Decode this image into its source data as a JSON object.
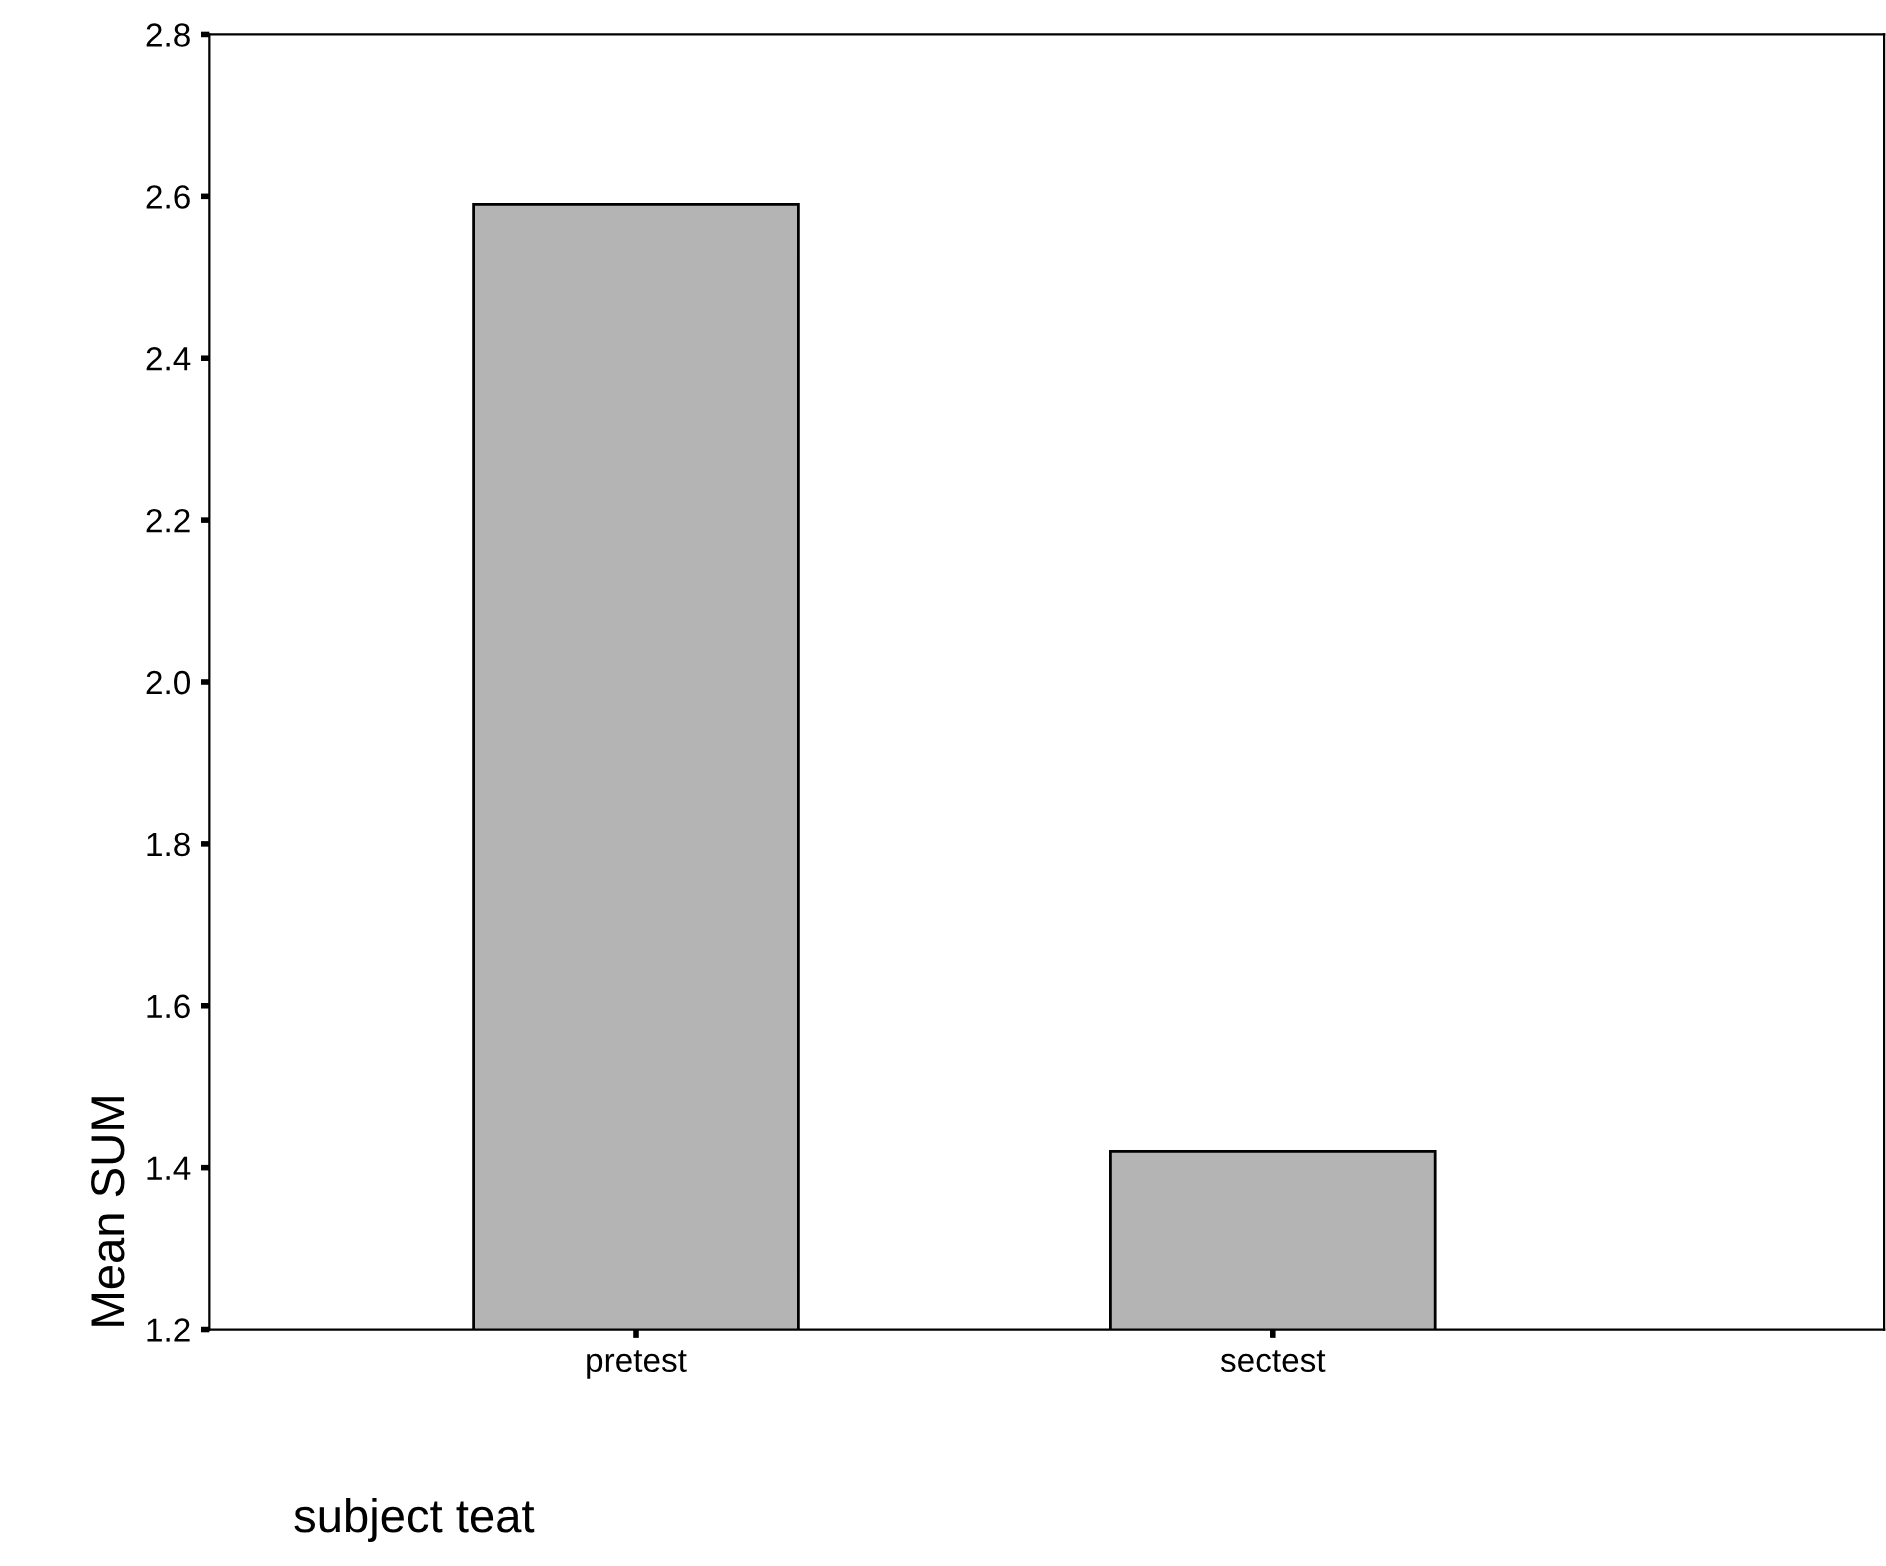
{
  "chart_data": {
    "type": "bar",
    "xlabel": "subject teat",
    "ylabel": "Mean SUM",
    "categories": [
      "pretest",
      "sectest"
    ],
    "values": [
      2.59,
      1.42
    ],
    "color": "#b4b4b4",
    "ylim": [
      1.2,
      2.8
    ],
    "yticks": [
      1.2,
      1.4,
      1.6,
      1.8,
      {
        "value": 2,
        "label": "2.0"
      },
      2.2,
      2.4,
      2.6,
      2.8
    ],
    "grid": false,
    "legend": false
  }
}
